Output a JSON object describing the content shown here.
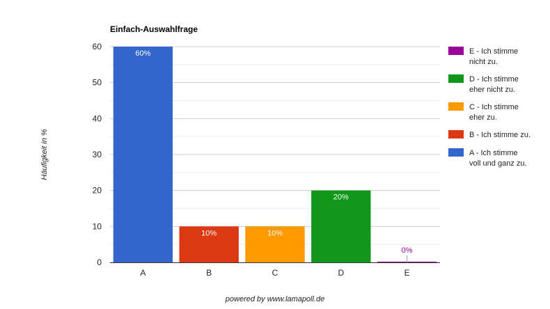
{
  "footer": "powered by www.lamapoll.de",
  "chart_data": {
    "type": "bar",
    "title": "Einfach-Auswahlfrage",
    "ylabel": "Häufigkeit in %",
    "xlabel": "",
    "ylim": [
      0,
      60
    ],
    "yticks": [
      0,
      10,
      20,
      30,
      40,
      50,
      60
    ],
    "grid": true,
    "legend_position": "right",
    "categories": [
      "A",
      "B",
      "C",
      "D",
      "E"
    ],
    "values": [
      60,
      10,
      10,
      20,
      0
    ],
    "data_labels": [
      "60%",
      "10%",
      "10%",
      "20%",
      "0%"
    ],
    "colors": [
      "#3366cc",
      "#dc3912",
      "#ff9900",
      "#109618",
      "#990099"
    ],
    "legend": [
      {
        "lines": [
          "E - Ich stimme",
          "nicht zu."
        ],
        "color": "#990099"
      },
      {
        "lines": [
          "D - Ich stimme",
          "eher nicht zu."
        ],
        "color": "#109618"
      },
      {
        "lines": [
          "C - Ich stimme",
          "eher zu."
        ],
        "color": "#ff9900"
      },
      {
        "lines": [
          "B - Ich stimme zu."
        ],
        "color": "#dc3912"
      },
      {
        "lines": [
          "A - Ich stimme",
          "voll und ganz zu."
        ],
        "color": "#3366cc"
      }
    ]
  }
}
